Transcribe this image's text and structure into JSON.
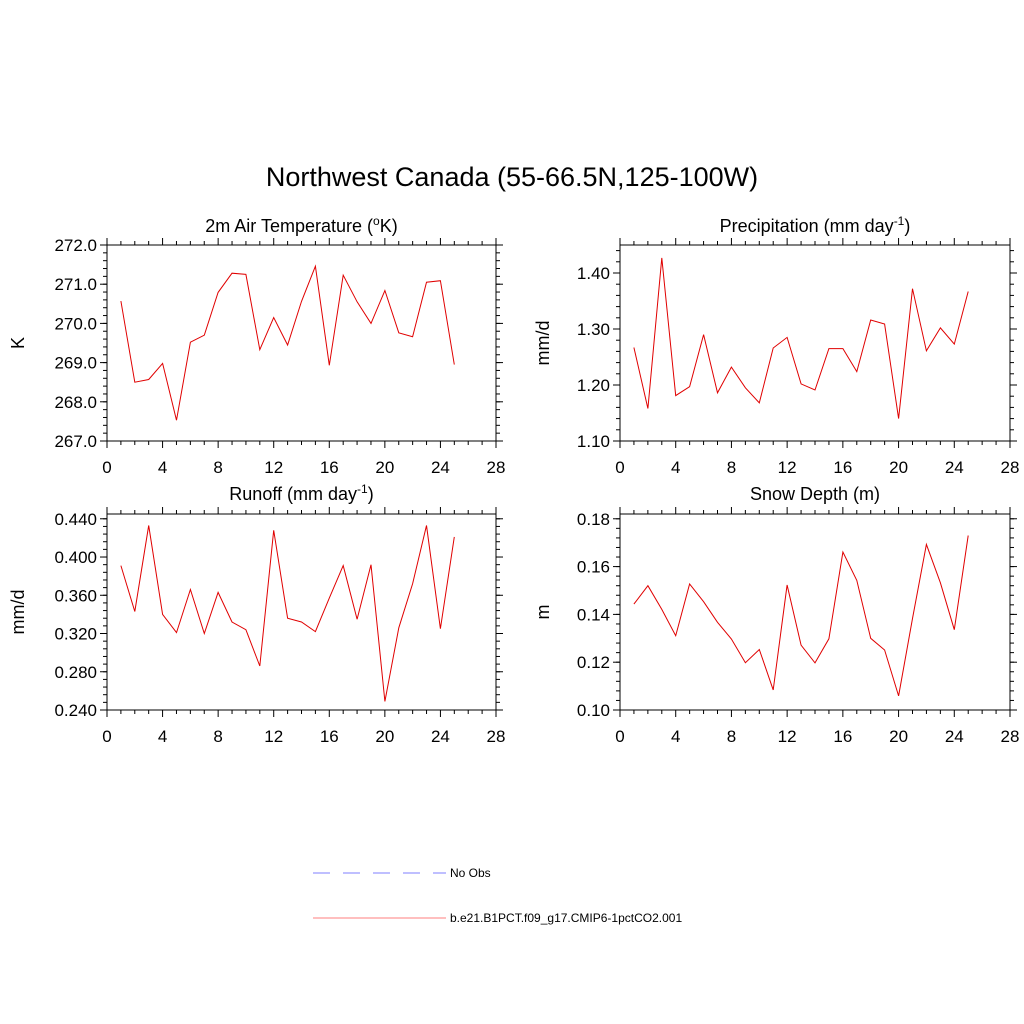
{
  "title": "Northwest Canada (55-66.5N,125-100W)",
  "colors": {
    "series": "#e00000",
    "obs": "#9999ff",
    "frame": "#000000"
  },
  "legend": [
    {
      "label": "No Obs",
      "color": "#9999ff",
      "style": "dashed"
    },
    {
      "label": "b.e21.B1PCT.f09_g17.CMIP6-1pctCO2.001",
      "color": "#ff9999",
      "style": "solid"
    }
  ],
  "chart_data": [
    {
      "type": "line",
      "title": "2m Air Temperature (",
      "title_sup": "o",
      "title_tail": "K)",
      "ylabel": "K",
      "xlim": [
        0,
        28
      ],
      "ylim": [
        267.0,
        272.0
      ],
      "xticks": [
        "0",
        "4",
        "8",
        "12",
        "16",
        "20",
        "24",
        "28"
      ],
      "yticks": [
        "267.0",
        "268.0",
        "269.0",
        "270.0",
        "271.0",
        "272.0"
      ],
      "x": [
        1,
        2,
        3,
        4,
        5,
        6,
        7,
        8,
        9,
        10,
        11,
        12,
        13,
        14,
        15,
        16,
        17,
        18,
        19,
        20,
        21,
        22,
        23,
        24,
        25
      ],
      "values": [
        270.57,
        268.5,
        268.57,
        268.98,
        267.53,
        269.52,
        269.7,
        270.79,
        271.28,
        271.25,
        269.33,
        270.15,
        269.45,
        270.56,
        271.46,
        268.93,
        271.23,
        270.55,
        270.0,
        270.84,
        269.76,
        269.66,
        271.05,
        271.09,
        268.95
      ]
    },
    {
      "type": "line",
      "title": "Precipitation (mm day",
      "title_sup": "-1",
      "title_tail": ")",
      "ylabel": "mm/d",
      "xlim": [
        0,
        28
      ],
      "ylim": [
        1.1,
        1.45
      ],
      "xticks": [
        "0",
        "4",
        "8",
        "12",
        "16",
        "20",
        "24",
        "28"
      ],
      "yticks": [
        "1.10",
        "1.20",
        "1.30",
        "1.40"
      ],
      "x": [
        1,
        2,
        3,
        4,
        5,
        6,
        7,
        8,
        9,
        10,
        11,
        12,
        13,
        14,
        15,
        16,
        17,
        18,
        19,
        20,
        21,
        22,
        23,
        24,
        25
      ],
      "values": [
        1.267,
        1.158,
        1.427,
        1.181,
        1.197,
        1.29,
        1.186,
        1.232,
        1.195,
        1.168,
        1.266,
        1.285,
        1.202,
        1.191,
        1.265,
        1.265,
        1.224,
        1.316,
        1.309,
        1.14,
        1.372,
        1.261,
        1.302,
        1.273,
        1.367
      ]
    },
    {
      "type": "line",
      "title": "Runoff (mm day",
      "title_sup": "-1",
      "title_tail": ")",
      "ylabel": "mm/d",
      "xlim": [
        0,
        28
      ],
      "ylim": [
        0.24,
        0.445
      ],
      "xticks": [
        "0",
        "4",
        "8",
        "12",
        "16",
        "20",
        "24",
        "28"
      ],
      "yticks": [
        "0.240",
        "0.280",
        "0.320",
        "0.360",
        "0.400",
        "0.440"
      ],
      "x": [
        1,
        2,
        3,
        4,
        5,
        6,
        7,
        8,
        9,
        10,
        11,
        12,
        13,
        14,
        15,
        16,
        17,
        18,
        19,
        20,
        21,
        22,
        23,
        24,
        25
      ],
      "values": [
        0.391,
        0.343,
        0.433,
        0.34,
        0.321,
        0.366,
        0.32,
        0.363,
        0.332,
        0.324,
        0.286,
        0.428,
        0.336,
        0.332,
        0.322,
        0.357,
        0.391,
        0.335,
        0.392,
        0.249,
        0.326,
        0.372,
        0.433,
        0.325,
        0.421
      ]
    },
    {
      "type": "line",
      "title": "Snow Depth (m)",
      "title_sup": "",
      "title_tail": "",
      "ylabel": "m",
      "xlim": [
        0,
        28
      ],
      "ylim": [
        0.1,
        0.182
      ],
      "xticks": [
        "0",
        "4",
        "8",
        "12",
        "16",
        "20",
        "24",
        "28"
      ],
      "yticks": [
        "0.10",
        "0.12",
        "0.14",
        "0.16",
        "0.18"
      ],
      "x": [
        1,
        2,
        3,
        4,
        5,
        6,
        7,
        8,
        9,
        10,
        11,
        12,
        13,
        14,
        15,
        16,
        17,
        18,
        19,
        20,
        21,
        22,
        23,
        24,
        25
      ],
      "values": [
        0.1443,
        0.152,
        0.1421,
        0.1311,
        0.1527,
        0.1453,
        0.1367,
        0.1297,
        0.1198,
        0.1253,
        0.1084,
        0.1523,
        0.1271,
        0.1197,
        0.1298,
        0.1661,
        0.1542,
        0.13,
        0.1251,
        0.1059,
        0.1383,
        0.1693,
        0.1532,
        0.1336,
        0.173
      ]
    }
  ]
}
